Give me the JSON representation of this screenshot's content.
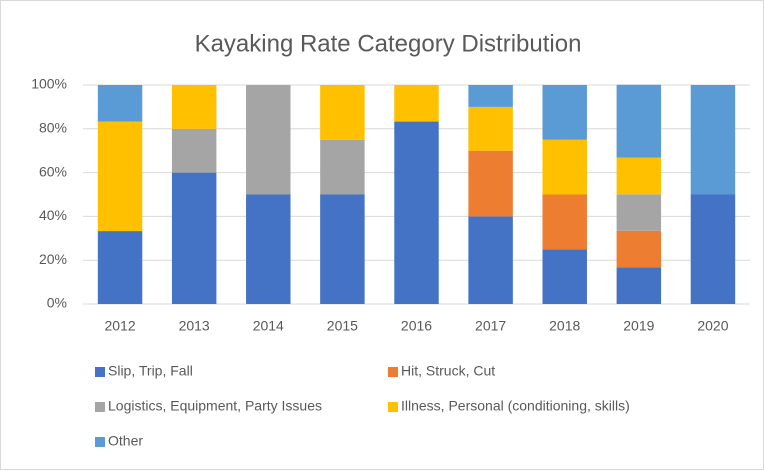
{
  "chart_data": {
    "type": "stacked_bar",
    "title": "Kayaking Rate Category Distribution",
    "categories": [
      "2012",
      "2013",
      "2014",
      "2015",
      "2016",
      "2017",
      "2018",
      "2019",
      "2020"
    ],
    "series": [
      {
        "name": "Slip, Trip, Fall",
        "color": "#4472c4",
        "values": [
          33.3,
          60,
          50,
          50,
          83.3,
          40,
          25,
          16.7,
          50
        ]
      },
      {
        "name": "Hit, Struck, Cut",
        "color": "#ed7d31",
        "values": [
          0,
          0,
          0,
          0,
          0,
          30,
          25,
          16.7,
          0
        ]
      },
      {
        "name": "Logistics, Equipment, Party Issues",
        "color": "#a5a5a5",
        "values": [
          0,
          20,
          50,
          25,
          0,
          0,
          0,
          16.7,
          0
        ]
      },
      {
        "name": "Illness, Personal (conditioning, skills)",
        "color": "#ffc000",
        "values": [
          50,
          20,
          0,
          25,
          16.7,
          20,
          25,
          16.7,
          0
        ]
      },
      {
        "name": "Other",
        "color": "#5b9bd5",
        "values": [
          16.7,
          0,
          0,
          0,
          0,
          10,
          25,
          33.3,
          50
        ]
      }
    ],
    "ylim": [
      0,
      100
    ],
    "yticks": [
      {
        "value": 0,
        "label": "0%"
      },
      {
        "value": 20,
        "label": "20%"
      },
      {
        "value": 40,
        "label": "40%"
      },
      {
        "value": 60,
        "label": "60%"
      },
      {
        "value": 80,
        "label": "80%"
      },
      {
        "value": 100,
        "label": "100%"
      }
    ],
    "grid": true
  }
}
